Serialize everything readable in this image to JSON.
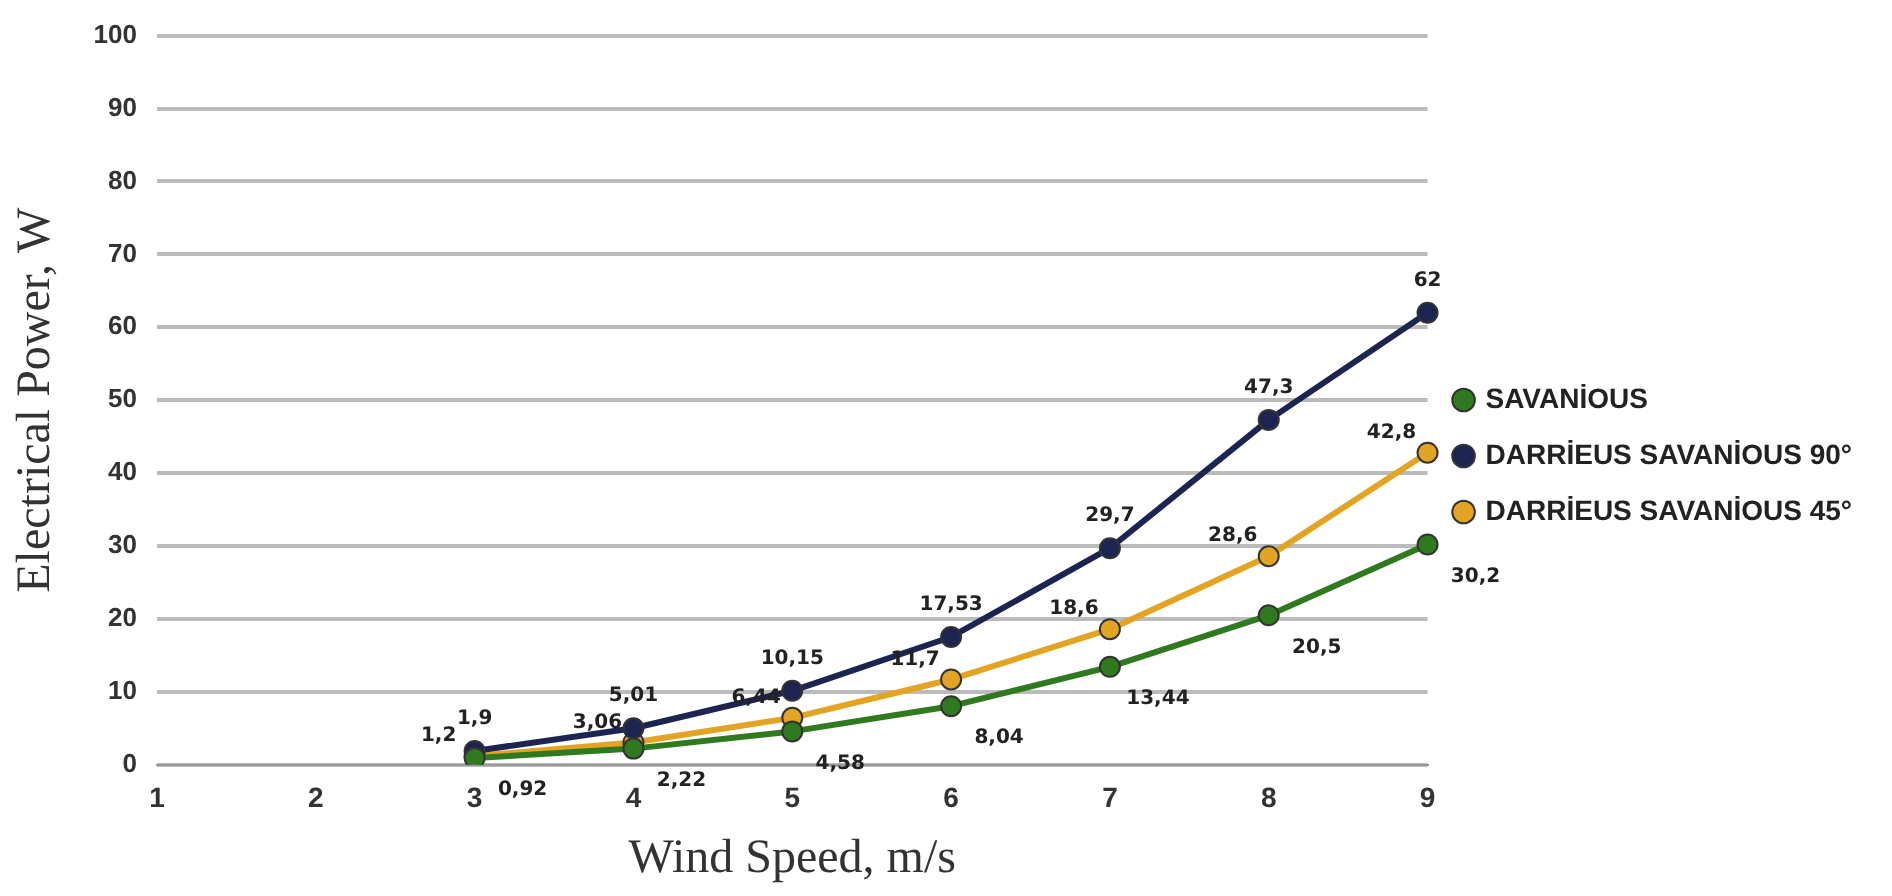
{
  "chart_data": {
    "type": "line",
    "xlabel": "Wind Speed, m/s",
    "ylabel": "Electrical Power, W",
    "categories": [
      "1",
      "2",
      "3",
      "4",
      "5",
      "6",
      "7",
      "8",
      "9"
    ],
    "series": [
      {
        "name": "SAVANİOUS",
        "color": "#2f7a1f",
        "values": [
          null,
          null,
          0.92,
          2.22,
          4.58,
          8.04,
          13.44,
          20.5,
          30.2
        ],
        "value_labels": [
          null,
          null,
          "0,92",
          "2,22",
          "4,58",
          "8,04",
          "13,44",
          "20,5",
          "30,2"
        ]
      },
      {
        "name": "DARRİEUS SAVANİOUS 90°",
        "color": "#1c2452",
        "values": [
          null,
          null,
          1.9,
          5.01,
          10.15,
          17.53,
          29.7,
          47.3,
          62
        ],
        "value_labels": [
          null,
          null,
          "1,9",
          "5,01",
          "10,15",
          "17,53",
          "29,7",
          "47,3",
          "62"
        ]
      },
      {
        "name": "DARRİEUS SAVANİOUS 45°",
        "color": "#e3a323",
        "values": [
          null,
          null,
          1.2,
          3.06,
          6.44,
          11.7,
          18.6,
          28.6,
          42.8
        ],
        "value_labels": [
          null,
          null,
          "1,2",
          "3,06",
          "6,44",
          "11,7",
          "18,6",
          "28,6",
          "42,8"
        ]
      }
    ],
    "ylim": [
      0,
      100
    ],
    "yticks": [
      0,
      10,
      20,
      30,
      40,
      50,
      60,
      70,
      80,
      90,
      100
    ],
    "grid": "y",
    "legend": "right",
    "marker": "circle",
    "line_style": "solid"
  }
}
